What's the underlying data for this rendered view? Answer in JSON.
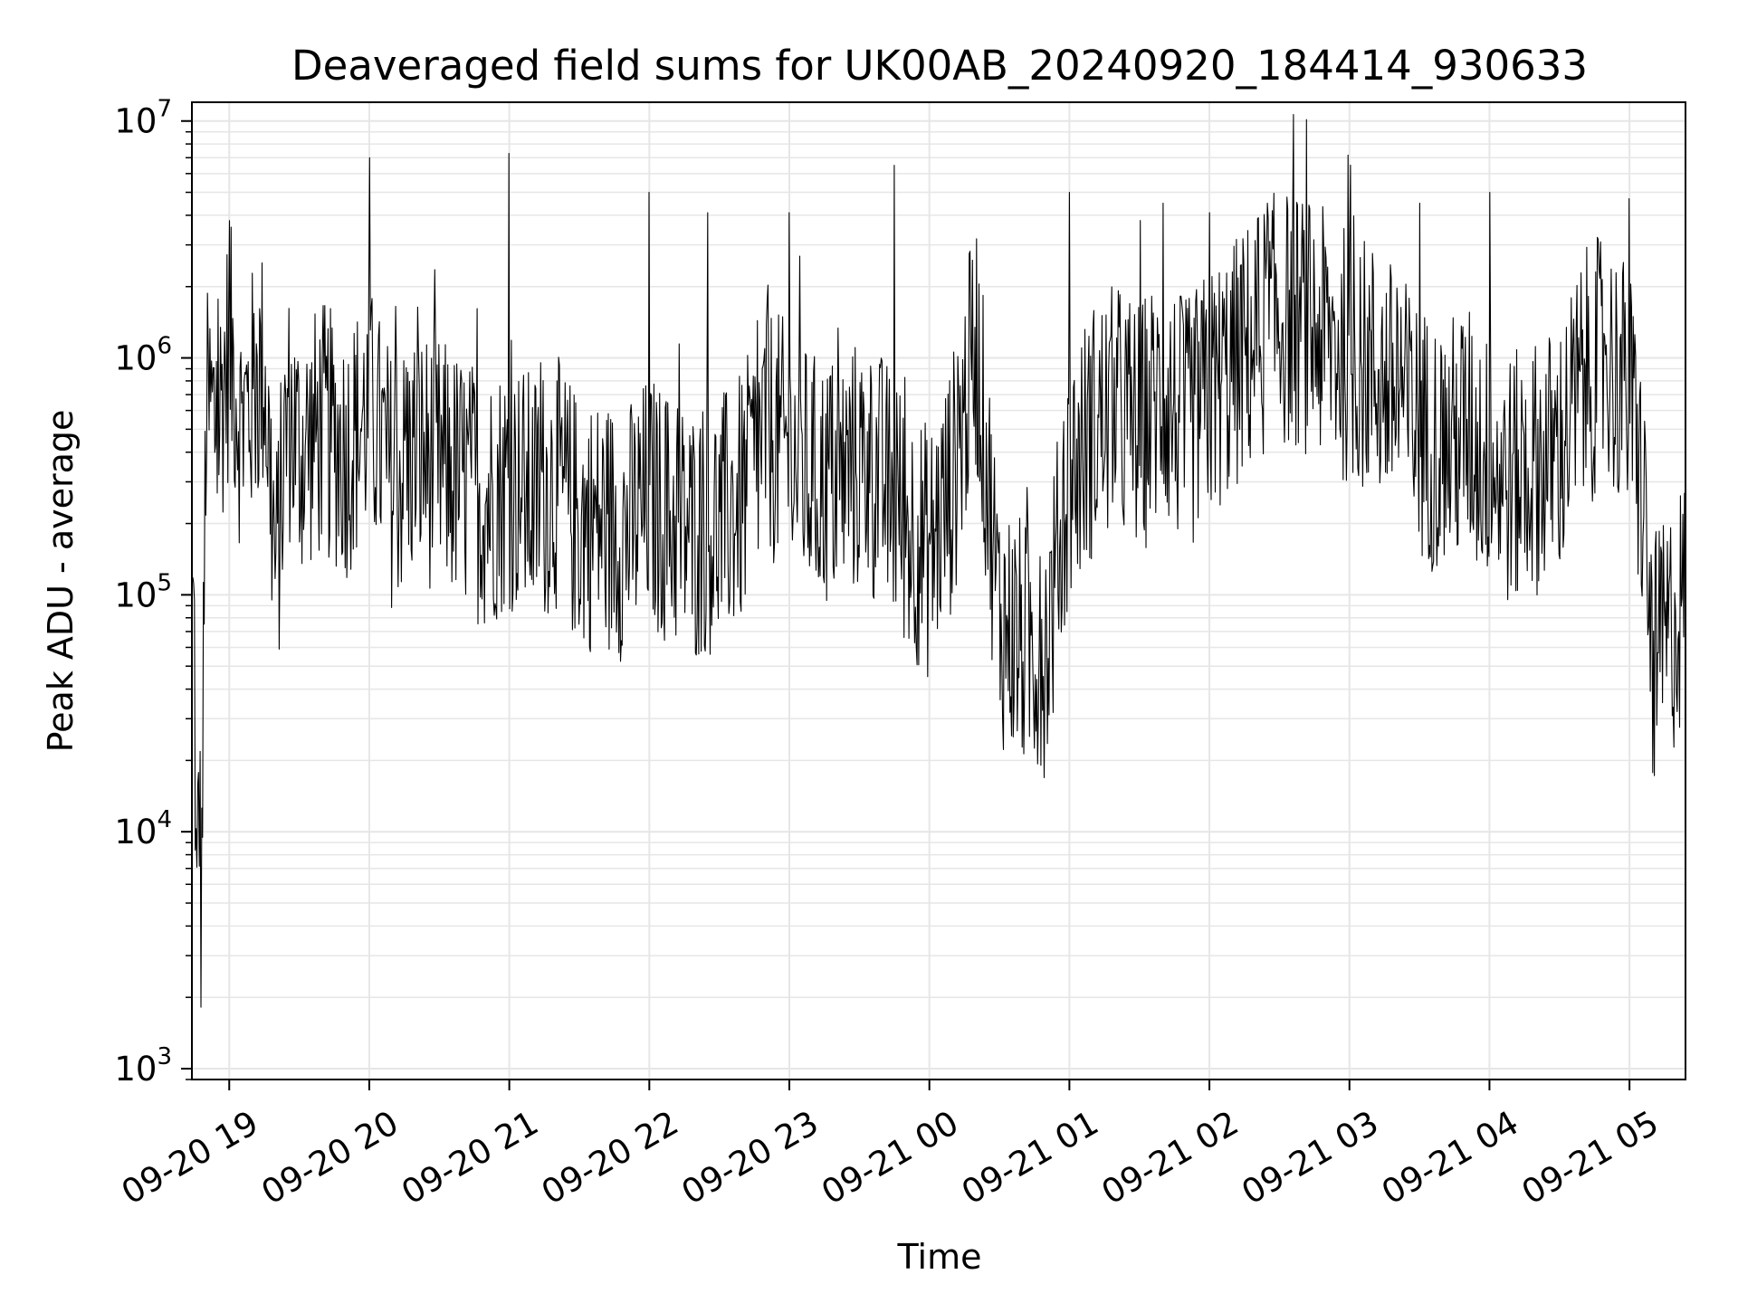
{
  "chart_data": {
    "type": "line",
    "title": "Deaveraged field sums for UK00AB_20240920_184414_930633",
    "xlabel": "Time",
    "ylabel": "Peak ADU - average",
    "y_scale": "log",
    "ylim": [
      900,
      12000000
    ],
    "xlim": [
      "2024-09-20 18:44",
      "2024-09-21 05:24"
    ],
    "grid": true,
    "legend": "none",
    "line_color": "#000000",
    "grid_color": "#e6e6e6",
    "x_ticks": [
      {
        "time": "2024-09-20 19:00",
        "label": "09-20 19"
      },
      {
        "time": "2024-09-20 20:00",
        "label": "09-20 20"
      },
      {
        "time": "2024-09-20 21:00",
        "label": "09-20 21"
      },
      {
        "time": "2024-09-20 22:00",
        "label": "09-20 22"
      },
      {
        "time": "2024-09-20 23:00",
        "label": "09-20 23"
      },
      {
        "time": "2024-09-21 00:00",
        "label": "09-21 00"
      },
      {
        "time": "2024-09-21 01:00",
        "label": "09-21 01"
      },
      {
        "time": "2024-09-21 02:00",
        "label": "09-21 02"
      },
      {
        "time": "2024-09-21 03:00",
        "label": "09-21 03"
      },
      {
        "time": "2024-09-21 04:00",
        "label": "09-21 04"
      },
      {
        "time": "2024-09-21 05:00",
        "label": "09-21 05"
      }
    ],
    "y_ticks": [
      {
        "value": 1000,
        "base": "10",
        "exp": "3"
      },
      {
        "value": 10000,
        "base": "10",
        "exp": "4"
      },
      {
        "value": 100000,
        "base": "10",
        "exp": "5"
      },
      {
        "value": 1000000,
        "base": "10",
        "exp": "6"
      },
      {
        "value": 10000000,
        "base": "10",
        "exp": "7"
      }
    ],
    "series": [
      {
        "x": [
          "2024-09-20 18:45",
          "2024-09-20 18:46",
          "2024-09-20 18:47",
          "2024-09-20 18:48",
          "2024-09-20 18:50",
          "2024-09-20 18:52",
          "2024-09-20 18:55",
          "2024-09-20 18:58",
          "2024-09-20 19:00",
          "2024-09-20 19:02",
          "2024-09-20 19:05",
          "2024-09-20 19:10",
          "2024-09-20 19:15",
          "2024-09-20 19:20",
          "2024-09-20 19:25",
          "2024-09-20 19:30",
          "2024-09-20 19:40",
          "2024-09-20 19:50",
          "2024-09-20 20:00",
          "2024-09-20 20:10",
          "2024-09-20 20:20",
          "2024-09-20 20:30",
          "2024-09-20 20:40",
          "2024-09-20 20:50",
          "2024-09-20 21:00",
          "2024-09-20 21:10",
          "2024-09-20 21:20",
          "2024-09-20 21:30",
          "2024-09-20 21:40",
          "2024-09-20 21:50",
          "2024-09-20 22:00",
          "2024-09-20 22:10",
          "2024-09-20 22:20",
          "2024-09-20 22:30",
          "2024-09-20 22:40",
          "2024-09-20 22:50",
          "2024-09-20 23:00",
          "2024-09-20 23:10",
          "2024-09-20 23:20",
          "2024-09-20 23:30",
          "2024-09-20 23:40",
          "2024-09-20 23:50",
          "2024-09-21 00:00",
          "2024-09-21 00:10",
          "2024-09-21 00:20",
          "2024-09-21 00:30",
          "2024-09-21 00:40",
          "2024-09-21 00:50",
          "2024-09-21 01:00",
          "2024-09-21 01:10",
          "2024-09-21 01:20",
          "2024-09-21 01:30",
          "2024-09-21 01:40",
          "2024-09-21 01:50",
          "2024-09-21 02:00",
          "2024-09-21 02:10",
          "2024-09-21 02:20",
          "2024-09-21 02:30",
          "2024-09-21 02:40",
          "2024-09-21 02:50",
          "2024-09-21 03:00",
          "2024-09-21 03:10",
          "2024-09-21 03:20",
          "2024-09-21 03:30",
          "2024-09-21 03:40",
          "2024-09-21 03:50",
          "2024-09-21 04:00",
          "2024-09-21 04:10",
          "2024-09-21 04:20",
          "2024-09-21 04:30",
          "2024-09-21 04:40",
          "2024-09-21 04:50",
          "2024-09-21 05:00",
          "2024-09-21 05:05",
          "2024-09-21 05:10",
          "2024-09-21 05:15",
          "2024-09-21 05:20",
          "2024-09-21 05:24"
        ],
        "y": [
          80000,
          3000,
          20000,
          4000,
          550000,
          600000,
          500000,
          850000,
          1100000,
          900000,
          500000,
          700000,
          900000,
          120000,
          600000,
          400000,
          500000,
          400000,
          600000,
          300000,
          400000,
          350000,
          300000,
          250000,
          300000,
          250000,
          300000,
          200000,
          200000,
          180000,
          250000,
          200000,
          180000,
          200000,
          250000,
          500000,
          400000,
          300000,
          300000,
          350000,
          300000,
          200000,
          150000,
          300000,
          1200000,
          80000,
          60000,
          60000,
          300000,
          500000,
          600000,
          500000,
          700000,
          500000,
          700000,
          900000,
          1200000,
          1500000,
          1400000,
          1200000,
          1000000,
          900000,
          700000,
          500000,
          400000,
          500000,
          350000,
          300000,
          350000,
          400000,
          800000,
          1000000,
          700000,
          300000,
          50000,
          60000,
          80000,
          100000
        ],
        "peaks": [
          {
            "x": "2024-09-20 19:00",
            "y": 3800000
          },
          {
            "x": "2024-09-20 20:00",
            "y": 7000000
          },
          {
            "x": "2024-09-20 21:00",
            "y": 7300000
          },
          {
            "x": "2024-09-20 22:00",
            "y": 5000000
          },
          {
            "x": "2024-09-20 22:25",
            "y": 4100000
          },
          {
            "x": "2024-09-20 23:00",
            "y": 4100000
          },
          {
            "x": "2024-09-20 23:45",
            "y": 6500000
          },
          {
            "x": "2024-09-21 01:00",
            "y": 5000000
          },
          {
            "x": "2024-09-21 01:40",
            "y": 4500000
          },
          {
            "x": "2024-09-21 02:00",
            "y": 4100000
          },
          {
            "x": "2024-09-21 02:25",
            "y": 4500000
          },
          {
            "x": "2024-09-21 03:30",
            "y": 4500000
          },
          {
            "x": "2024-09-21 04:00",
            "y": 5000000
          },
          {
            "x": "2024-09-21 05:00",
            "y": 4700000
          }
        ]
      }
    ]
  }
}
